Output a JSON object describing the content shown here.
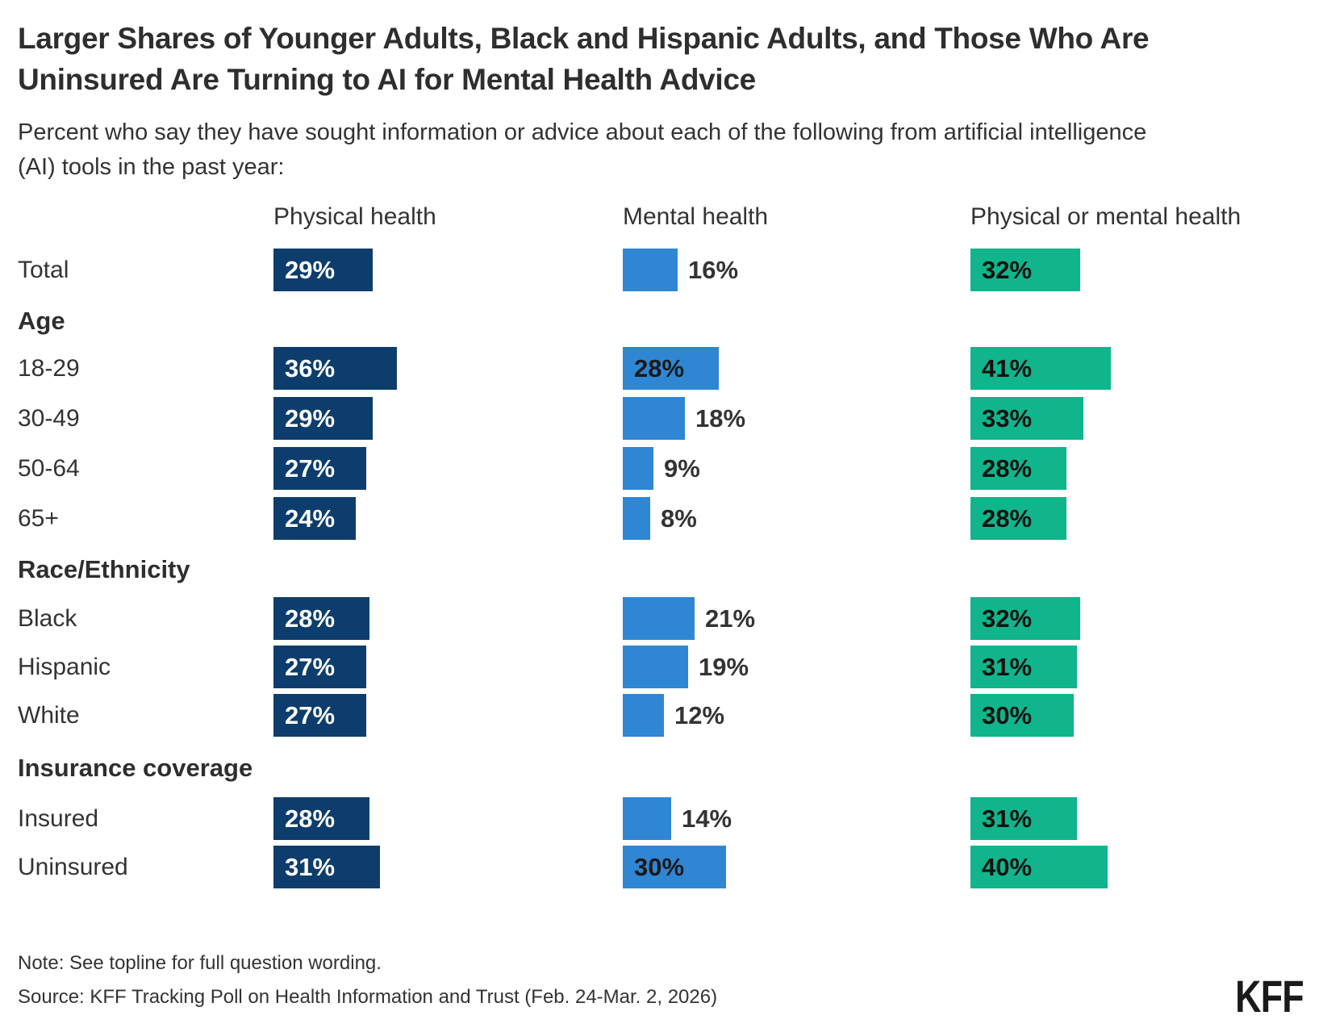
{
  "title": "Larger Shares of Younger Adults, Black and Hispanic Adults, and Those Who Are Uninsured Are Turning to AI for Mental Health Advice",
  "subtitle": "Percent who say they have sought information or advice about each of the following from artificial intelligence (AI) tools in the past year:",
  "note": "Note: See topline for full question wording.",
  "source": "Source: KFF Tracking Poll on Health Information and Trust (Feb. 24-Mar. 2, 2026)",
  "logo": "KFF",
  "chart_data": {
    "type": "bar",
    "unit": "%",
    "title": "Larger Shares of Younger Adults, Black and Hispanic Adults, and Those Who Are Uninsured Are Turning to AI for Mental Health Advice",
    "subtitle": "Percent who say they have sought information or advice about each of the following from artificial intelligence (AI) tools in the past year:",
    "legend_position": "column-headers-top",
    "grid": false,
    "xlim": [
      0,
      50
    ],
    "columns": [
      {
        "id": "physical",
        "label": "Physical health",
        "color": "#0d3d6c",
        "label_color": "#ffffff"
      },
      {
        "id": "mental",
        "label": "Mental health",
        "color": "#2f86d3",
        "label_color": "#1a1a1a"
      },
      {
        "id": "combined",
        "label": "Physical or mental health",
        "color": "#10b58b",
        "label_color": "#111111"
      }
    ],
    "outside_label_color": "#333333",
    "rows": [
      {
        "type": "data",
        "label": "Total",
        "physical": 29,
        "mental": 16,
        "combined": 32
      },
      {
        "type": "section",
        "label": "Age"
      },
      {
        "type": "data",
        "label": "18-29",
        "physical": 36,
        "mental": 28,
        "combined": 41
      },
      {
        "type": "data",
        "label": "30-49",
        "physical": 29,
        "mental": 18,
        "combined": 33
      },
      {
        "type": "data",
        "label": "50-64",
        "physical": 27,
        "mental": 9,
        "combined": 28
      },
      {
        "type": "data",
        "label": "65+",
        "physical": 24,
        "mental": 8,
        "combined": 28
      },
      {
        "type": "section",
        "label": "Race/Ethnicity"
      },
      {
        "type": "data",
        "label": "Black",
        "physical": 28,
        "mental": 21,
        "combined": 32
      },
      {
        "type": "data",
        "label": "Hispanic",
        "physical": 27,
        "mental": 19,
        "combined": 31
      },
      {
        "type": "data",
        "label": "White",
        "physical": 27,
        "mental": 12,
        "combined": 30
      },
      {
        "type": "section",
        "label": "Insurance coverage"
      },
      {
        "type": "data",
        "label": "Insured",
        "physical": 28,
        "mental": 14,
        "combined": 31
      },
      {
        "type": "data",
        "label": "Uninsured",
        "physical": 31,
        "mental": 30,
        "combined": 40
      }
    ]
  }
}
